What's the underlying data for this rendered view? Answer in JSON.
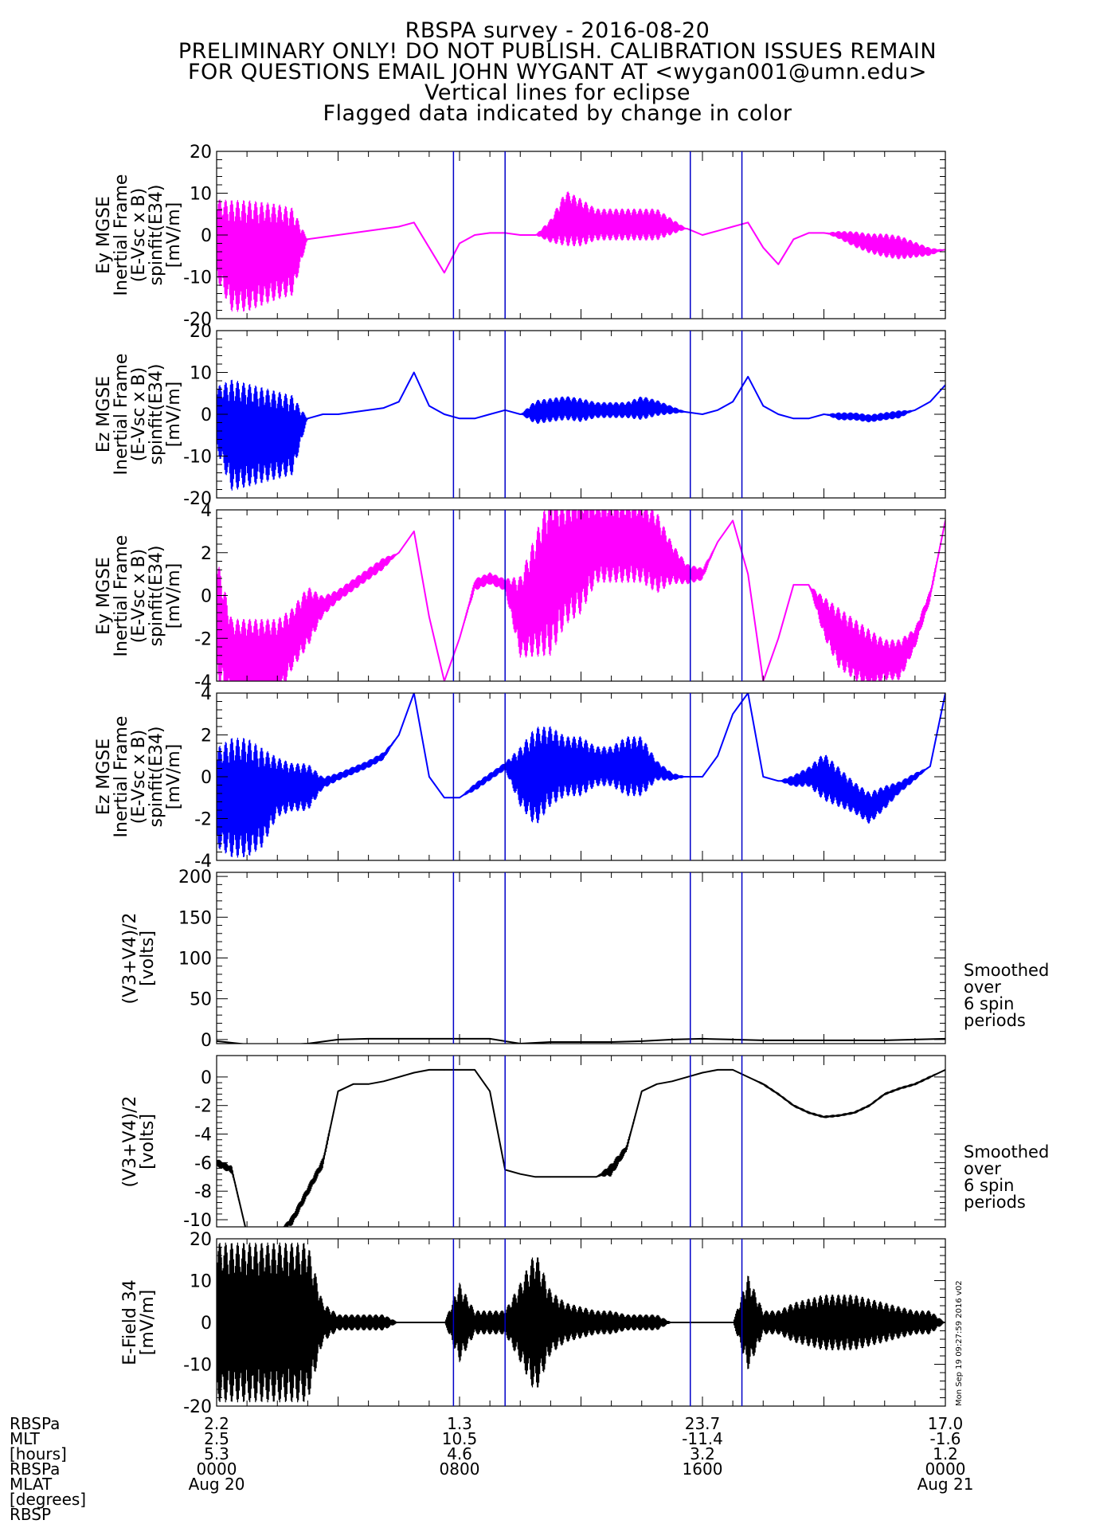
{
  "title_lines": [
    "RBSPA survey - 2016-08-20",
    "PRELIMINARY ONLY! DO NOT PUBLISH. CALIBRATION ISSUES REMAIN",
    "FOR QUESTIONS EMAIL JOHN WYGANT AT <wygan001@umn.edu>",
    "Vertical lines for eclipse",
    "Flagged data indicated by change in color"
  ],
  "colors": {
    "magenta": "#ff00ff",
    "blue": "#0000ff",
    "black": "#000000",
    "eclipse_line": "#0000c8"
  },
  "eclipse_lines_hours": [
    7.8,
    9.5,
    15.6,
    17.3
  ],
  "side_note": "Smoothed\nover\n6 spin\nperiods",
  "timestamp": "Mon Sep 19 09:27:59 2016 v02",
  "footer": {
    "row_labels": [
      "RBSPa",
      "MLT",
      "[hours]",
      "RBSPa",
      "MLAT",
      "[degrees]",
      "RBSP"
    ],
    "columns": [
      {
        "x_hours": 0,
        "values": [
          "2.2",
          "2.5",
          "5.3",
          "0000",
          "Aug 20"
        ]
      },
      {
        "x_hours": 8,
        "values": [
          "1.3",
          "10.5",
          "4.6",
          "0800",
          ""
        ]
      },
      {
        "x_hours": 16,
        "values": [
          "23.7",
          "-11.4",
          "3.2",
          "1600",
          ""
        ]
      },
      {
        "x_hours": 24,
        "values": [
          "17.0",
          "-1.6",
          "1.2",
          "0000",
          "Aug 21"
        ]
      }
    ]
  },
  "chart_data": [
    {
      "type": "line",
      "ylabel": "Ey MGSE\nInertial Frame\n(E-Vsc x B)\nspinfit(E34)\n[mV/m]",
      "yticks": [
        "20",
        "10",
        "0",
        "-10",
        "-20"
      ],
      "ylim": [
        -20,
        20
      ],
      "xlim": [
        0,
        24
      ],
      "series": [
        {
          "color": "magenta",
          "x": [
            0,
            0.5,
            1,
            1.5,
            2,
            2.5,
            3,
            3.5,
            4,
            4.5,
            5,
            5.5,
            6,
            6.5,
            7,
            7.5,
            8,
            8.5,
            9,
            9.5,
            10,
            10.5,
            11,
            11.5,
            12,
            12.5,
            13,
            13.5,
            14,
            14.5,
            15,
            15.5,
            16,
            16.5,
            17,
            17.5,
            18,
            18.5,
            19,
            19.5,
            20,
            20.5,
            21,
            21.5,
            22,
            22.5,
            23,
            23.5,
            24
          ],
          "y": [
            -1,
            -5,
            -5,
            -4.5,
            -4,
            -4,
            -1,
            -0.5,
            0,
            0.5,
            1,
            1.5,
            2,
            3,
            -3,
            -9,
            -2,
            0,
            0.5,
            0.5,
            0,
            0,
            1,
            4,
            3,
            2.5,
            2.5,
            2.5,
            2.5,
            2.5,
            2,
            1.5,
            0,
            1,
            2,
            3,
            -3,
            -7,
            -1,
            0.5,
            0.5,
            0,
            -1,
            -2,
            -2.5,
            -3,
            -3.5,
            -4,
            -3.5
          ],
          "noise": [
            10,
            14,
            14,
            13,
            12,
            11,
            0,
            0,
            0,
            0,
            0,
            0,
            0,
            0,
            0,
            0,
            0,
            0,
            0,
            0,
            0,
            0,
            3,
            7,
            6,
            4,
            4,
            4,
            4,
            4,
            2,
            0,
            0,
            0,
            0,
            0,
            0,
            0,
            0,
            0,
            0,
            1,
            2,
            2.5,
            3,
            3,
            2,
            1,
            0
          ]
        }
      ]
    },
    {
      "type": "line",
      "ylabel": "Ez MGSE\nInertial Frame\n(E-Vsc x B)\nspinfit(E34)\n[mV/m]",
      "yticks": [
        "20",
        "10",
        "0",
        "-10",
        "-20"
      ],
      "ylim": [
        -20,
        20
      ],
      "xlim": [
        0,
        24
      ],
      "series": [
        {
          "color": "blue",
          "x": [
            0,
            0.5,
            1,
            1.5,
            2,
            2.5,
            3,
            3.5,
            4,
            4.5,
            5,
            5.5,
            6,
            6.5,
            7,
            7.5,
            8,
            8.5,
            9,
            9.5,
            10,
            10.5,
            11,
            11.5,
            12,
            12.5,
            13,
            13.5,
            14,
            14.5,
            15,
            15.5,
            16,
            16.5,
            17,
            17.5,
            18,
            18.5,
            19,
            19.5,
            20,
            20.5,
            21,
            21.5,
            22,
            22.5,
            23,
            23.5,
            24
          ],
          "y": [
            -1,
            -5,
            -5,
            -5,
            -5,
            -5,
            -1,
            0,
            0,
            0.5,
            1,
            1.5,
            3,
            10,
            2,
            0,
            -1,
            -1,
            0,
            1,
            0,
            0.5,
            1,
            1.5,
            1,
            1,
            1,
            1,
            1.5,
            1.5,
            1,
            0.5,
            0,
            1,
            3,
            9,
            2,
            0,
            -1,
            -1,
            0,
            -0.5,
            -0.5,
            -1,
            -0.5,
            0,
            1,
            3,
            7
          ],
          "noise": [
            8,
            14,
            13,
            12,
            11,
            10,
            0,
            0,
            0,
            0,
            0,
            0,
            0,
            0,
            0,
            0,
            0,
            0,
            0,
            0,
            0,
            3,
            3,
            3,
            3,
            2,
            2,
            2,
            3,
            2,
            1,
            0,
            0,
            0,
            0,
            0,
            0,
            0,
            0,
            0,
            0,
            1,
            1,
            1,
            1,
            1,
            0,
            0,
            0
          ]
        }
      ]
    },
    {
      "type": "line",
      "ylabel": "Ey MGSE\nInertial Frame\n(E-Vsc x B)\nspinfit(E34)\n[mV/m]",
      "yticks": [
        "4",
        "2",
        "0",
        "-2",
        "-4"
      ],
      "ylim": [
        -4,
        4
      ],
      "xlim": [
        0,
        24
      ],
      "series": [
        {
          "color": "magenta",
          "x": [
            0,
            0.5,
            1,
            1.5,
            2,
            2.5,
            3,
            3.5,
            4,
            4.5,
            5,
            5.5,
            6,
            6.5,
            7,
            7.5,
            8,
            8.5,
            9,
            9.5,
            10,
            10.5,
            11,
            11.5,
            12,
            12.5,
            13,
            13.5,
            14,
            14.5,
            15,
            15.5,
            16,
            16.5,
            17,
            17.5,
            18,
            18.5,
            19,
            19.5,
            20,
            20.5,
            21,
            21.5,
            22,
            22.5,
            23,
            23.5,
            24
          ],
          "y": [
            -1,
            -3,
            -3,
            -3,
            -3,
            -2,
            -1,
            -0.5,
            0,
            0.5,
            1,
            1.5,
            2,
            3,
            -1,
            -4,
            -2,
            0.5,
            0.8,
            0.5,
            -1,
            0,
            1,
            1.5,
            2,
            2.5,
            2.5,
            2.5,
            2.5,
            2,
            1.5,
            1,
            1,
            2.5,
            3.5,
            1,
            -4,
            -2,
            0.5,
            0.5,
            -1,
            -2,
            -2.5,
            -3,
            -3,
            -3,
            -2,
            0,
            3.5
          ],
          "noise": [
            3,
            2,
            2,
            2,
            2,
            1.5,
            1.5,
            0.5,
            0.3,
            0.3,
            0.3,
            0.3,
            0,
            0,
            0,
            0,
            0,
            0.3,
            0.3,
            0.3,
            2,
            3,
            4,
            3,
            3,
            2,
            2,
            2,
            2,
            2,
            1,
            0.5,
            0.3,
            0,
            0,
            0,
            0,
            0,
            0,
            0,
            1,
            1.5,
            1.5,
            1.5,
            1,
            1,
            0.5,
            0.3,
            0
          ]
        }
      ]
    },
    {
      "type": "line",
      "ylabel": "Ez MGSE\nInertial Frame\n(E-Vsc x B)\nspinfit(E34)\n[mV/m]",
      "yticks": [
        "4",
        "2",
        "0",
        "-2",
        "-4"
      ],
      "ylim": [
        -4,
        4
      ],
      "xlim": [
        0,
        24
      ],
      "series": [
        {
          "color": "blue",
          "x": [
            0,
            0.5,
            1,
            1.5,
            2,
            2.5,
            3,
            3.5,
            4,
            4.5,
            5,
            5.5,
            6,
            6.5,
            7,
            7.5,
            8,
            8.5,
            9,
            9.5,
            10,
            10.5,
            11,
            11.5,
            12,
            12.5,
            13,
            13.5,
            14,
            14.5,
            15,
            15.5,
            16,
            16.5,
            17,
            17.5,
            18,
            18.5,
            19,
            19.5,
            20,
            20.5,
            21,
            21.5,
            22,
            22.5,
            23,
            23.5,
            24
          ],
          "y": [
            -1,
            -1,
            -1,
            -1,
            -0.5,
            -0.5,
            -0.5,
            -0.3,
            0,
            0.3,
            0.6,
            1,
            2,
            4,
            0,
            -1,
            -1,
            -0.5,
            0,
            0.5,
            0,
            0,
            0.5,
            0.5,
            0.5,
            0.5,
            0.5,
            0.5,
            0.5,
            0.3,
            0,
            0,
            0,
            1,
            3,
            4,
            0,
            -0.2,
            -0.2,
            0,
            0,
            -0.5,
            -1,
            -1.5,
            -1,
            -0.5,
            0,
            0.5,
            4
          ],
          "noise": [
            2.5,
            3,
            3,
            2.5,
            1.5,
            1.2,
            1.2,
            0.3,
            0.2,
            0.2,
            0.2,
            0.2,
            0,
            0,
            0,
            0,
            0,
            0.2,
            0.2,
            0.2,
            1.5,
            2.5,
            2,
            1.5,
            1.5,
            1,
            1,
            1.5,
            1.5,
            0.5,
            0.2,
            0,
            0,
            0,
            0,
            0,
            0,
            0,
            0.3,
            0.5,
            1.2,
            1,
            0.8,
            0.8,
            0.6,
            0.3,
            0.2,
            0,
            0
          ]
        }
      ]
    },
    {
      "type": "line",
      "ylabel": "(V3+V4)/2\n[volts]",
      "yticks": [
        "200",
        "150",
        "100",
        "50",
        "0"
      ],
      "ylim": [
        -5,
        205
      ],
      "xlim": [
        0,
        24
      ],
      "series": [
        {
          "color": "black",
          "x": [
            0,
            1,
            2,
            3,
            4,
            5,
            6,
            7,
            8,
            9,
            10,
            11,
            12,
            13,
            14,
            15,
            16,
            17,
            18,
            19,
            20,
            21,
            22,
            23,
            24
          ],
          "y": [
            -2,
            -6,
            -7,
            -5,
            0,
            1,
            1,
            1,
            1,
            1,
            -5,
            -3,
            -3,
            -3,
            -2,
            0,
            1,
            0,
            -1,
            -1,
            -1,
            -1,
            -1,
            0,
            1
          ],
          "noise": []
        }
      ]
    },
    {
      "type": "line",
      "ylabel": "(V3+V4)/2\n[volts]",
      "yticks": [
        "0",
        "-2",
        "-4",
        "-6",
        "-8",
        "-10"
      ],
      "ylim": [
        -10.5,
        1.5
      ],
      "xlim": [
        0,
        24
      ],
      "series": [
        {
          "color": "black",
          "x": [
            0,
            0.5,
            1,
            1.5,
            2,
            2.5,
            3,
            3.5,
            4,
            4.5,
            5,
            5.5,
            6,
            6.5,
            7,
            7.5,
            8,
            8.5,
            9,
            9.5,
            10,
            10.5,
            11,
            11.5,
            12,
            12.5,
            13,
            13.5,
            14,
            14.5,
            15,
            15.5,
            16,
            16.5,
            17,
            17.5,
            18,
            18.5,
            19,
            19.5,
            20,
            20.5,
            21,
            21.5,
            22,
            22.5,
            23,
            23.5,
            24
          ],
          "y": [
            -6,
            -6.5,
            -11,
            -11,
            -11,
            -10,
            -8,
            -6,
            -1,
            -0.5,
            -0.5,
            -0.3,
            0,
            0.3,
            0.5,
            0.5,
            0.5,
            0.5,
            -1,
            -6.5,
            -6.8,
            -7,
            -7,
            -7,
            -7,
            -7,
            -6.5,
            -5,
            -1,
            -0.5,
            -0.3,
            0,
            0.3,
            0.5,
            0.5,
            0,
            -0.5,
            -1.2,
            -2,
            -2.5,
            -2.8,
            -2.7,
            -2.5,
            -2,
            -1.2,
            -0.8,
            -0.5,
            0,
            0.5
          ],
          "noise": [
            0.3,
            0.3,
            0,
            0,
            0,
            0.4,
            0.4,
            0.4,
            0,
            0,
            0,
            0,
            0,
            0,
            0,
            0,
            0,
            0,
            0,
            0,
            0,
            0,
            0,
            0,
            0,
            0,
            0.5,
            0.3,
            0,
            0,
            0,
            0,
            0,
            0,
            0,
            0,
            0.1,
            0.1,
            0.1,
            0.1,
            0.1,
            0.1,
            0.1,
            0.1,
            0.1,
            0.1,
            0.1,
            0.1,
            0
          ]
        }
      ]
    },
    {
      "type": "line",
      "ylabel": "E-Field 34\n[mV/m]",
      "yticks": [
        "20",
        "10",
        "0",
        "-10",
        "-20"
      ],
      "ylim": [
        -20,
        20
      ],
      "xlim": [
        0,
        24
      ],
      "series": [
        {
          "color": "black",
          "x": [
            0,
            0.5,
            1,
            1.5,
            2,
            2.5,
            3,
            3.5,
            4,
            4.5,
            5,
            5.5,
            6,
            6.5,
            7,
            7.5,
            8,
            8.5,
            9,
            9.5,
            10,
            10.5,
            11,
            11.5,
            12,
            12.5,
            13,
            13.5,
            14,
            14.5,
            15,
            15.5,
            16,
            16.5,
            17,
            17.5,
            18,
            18.5,
            19,
            19.5,
            20,
            20.5,
            21,
            21.5,
            22,
            22.5,
            23,
            23.5,
            24
          ],
          "y": [
            0,
            0,
            0,
            0,
            0,
            0,
            0,
            0,
            0,
            0,
            0,
            0,
            0,
            0,
            0,
            0,
            0,
            0,
            0,
            0,
            0,
            0,
            0,
            0,
            0,
            0,
            0,
            0,
            0,
            0,
            0,
            0,
            0,
            0,
            0,
            0,
            0,
            0,
            0,
            0,
            0,
            0,
            0,
            0,
            0,
            0,
            0,
            0,
            0
          ],
          "noise": [
            20,
            20,
            20,
            20,
            20,
            20,
            20,
            5,
            2,
            2,
            2,
            2,
            0,
            0,
            0,
            0,
            10,
            3,
            3,
            3,
            10,
            18,
            8,
            5,
            4,
            3,
            3,
            2,
            2,
            2,
            0,
            0,
            0,
            0,
            0,
            12,
            3,
            3,
            5,
            6,
            7,
            7,
            7,
            6,
            5,
            4,
            3,
            3,
            0
          ]
        }
      ]
    }
  ]
}
